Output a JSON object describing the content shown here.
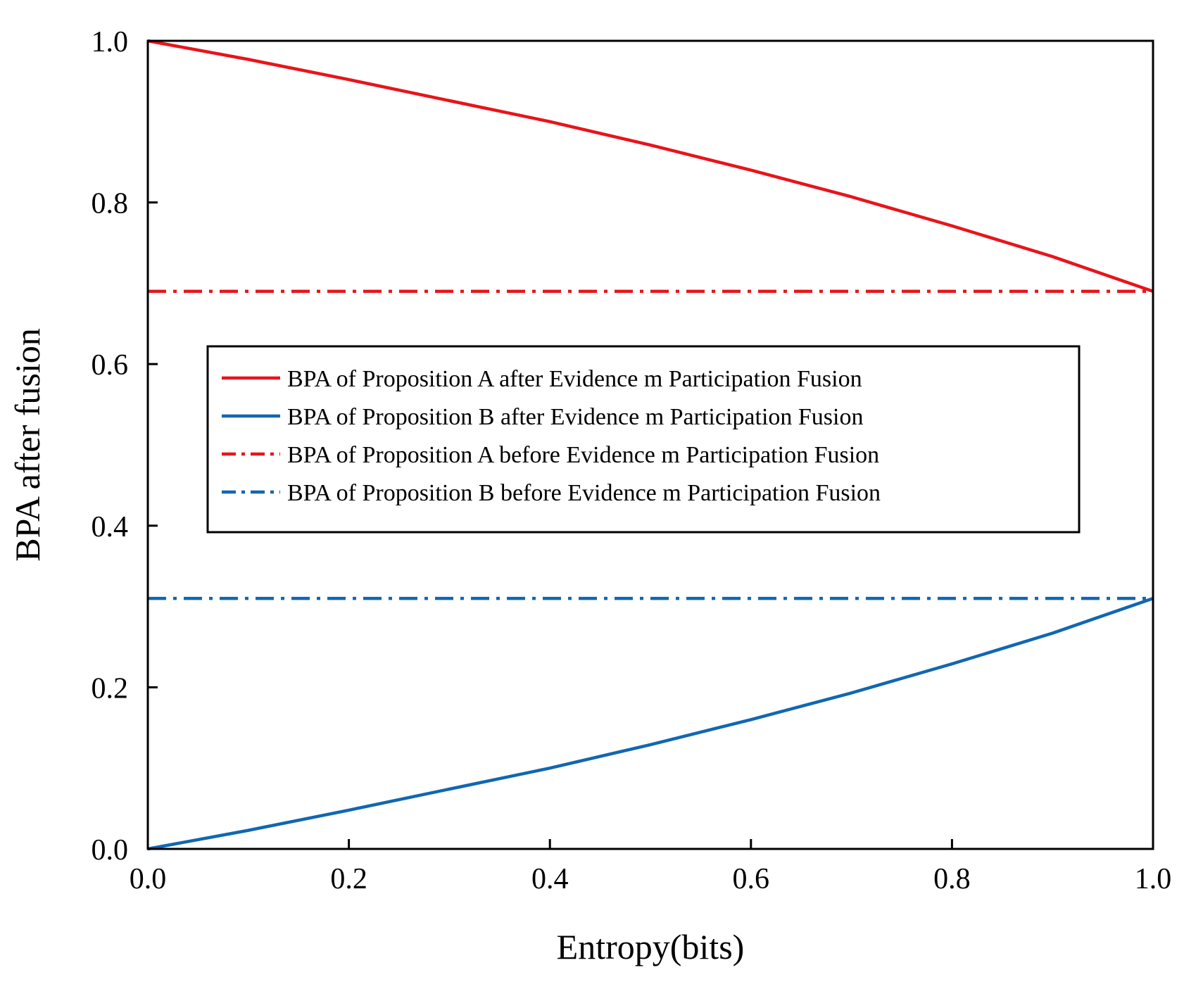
{
  "chart_data": {
    "type": "line",
    "title": "",
    "xlabel": "Entropy(bits)",
    "ylabel": "BPA after fusion",
    "xlim": [
      0.0,
      1.0
    ],
    "ylim": [
      0.0,
      1.0
    ],
    "xticks": [
      "0.0",
      "0.2",
      "0.4",
      "0.6",
      "0.8",
      "1.0"
    ],
    "yticks": [
      "0.0",
      "0.2",
      "0.4",
      "0.6",
      "0.8",
      "1.0"
    ],
    "grid": false,
    "legend_position": "center",
    "x": [
      0.0,
      0.1,
      0.2,
      0.3,
      0.4,
      0.5,
      0.6,
      0.7,
      0.8,
      0.9,
      1.0
    ],
    "series": [
      {
        "name": "BPA of Proposition A after Evidence m Participation Fusion",
        "style": "solid",
        "color": "#e8141b",
        "values": [
          1.0,
          0.977,
          0.952,
          0.926,
          0.9,
          0.871,
          0.84,
          0.807,
          0.771,
          0.733,
          0.69
        ]
      },
      {
        "name": "BPA of Proposition B after Evidence m Participation Fusion",
        "style": "solid",
        "color": "#1167b1",
        "values": [
          0.0,
          0.023,
          0.048,
          0.074,
          0.1,
          0.129,
          0.16,
          0.193,
          0.229,
          0.267,
          0.31
        ]
      },
      {
        "name": "BPA of Proposition A before Evidence m Participation Fusion",
        "style": "dashdot",
        "color": "#e8141b",
        "values": [
          0.69,
          0.69,
          0.69,
          0.69,
          0.69,
          0.69,
          0.69,
          0.69,
          0.69,
          0.69,
          0.69
        ]
      },
      {
        "name": "BPA of Proposition B before Evidence m Participation Fusion",
        "style": "dashdot",
        "color": "#1167b1",
        "values": [
          0.31,
          0.31,
          0.31,
          0.31,
          0.31,
          0.31,
          0.31,
          0.31,
          0.31,
          0.31,
          0.31
        ]
      }
    ]
  }
}
